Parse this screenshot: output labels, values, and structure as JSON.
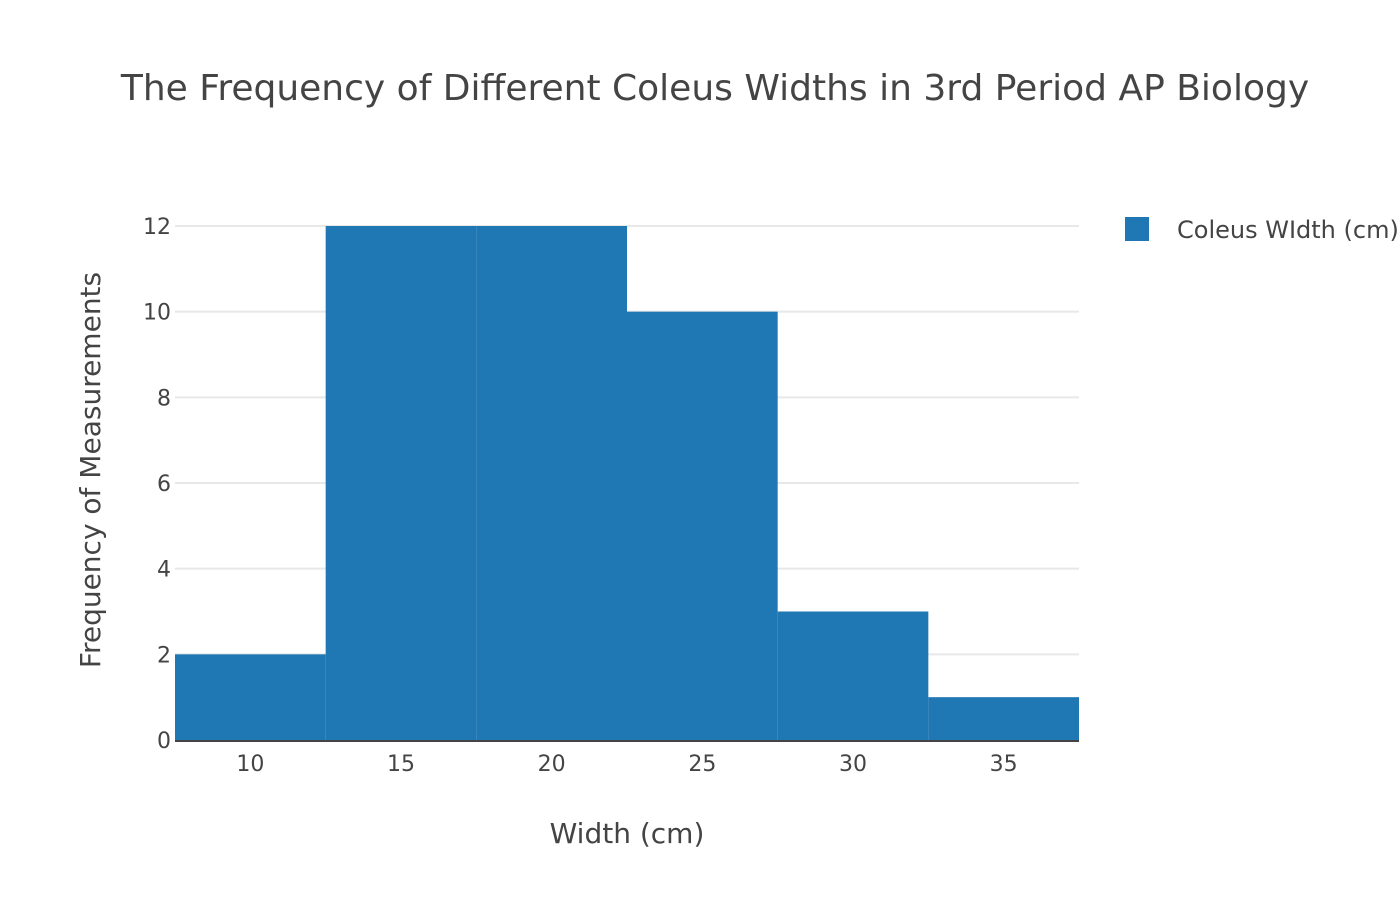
{
  "chart_data": {
    "type": "bar",
    "title": "The Frequency of Different Coleus Widths in 3rd Period AP Biology",
    "xlabel": "Width (cm)",
    "ylabel": "Frequency of Measurements",
    "bin_size": 5,
    "categories": [
      "7.5-12.5",
      "12.5-17.5",
      "17.5-22.5",
      "22.5-27.5",
      "27.5-32.5",
      "32.5-37.5"
    ],
    "bin_starts": [
      7.5,
      12.5,
      17.5,
      22.5,
      27.5,
      32.5
    ],
    "values": [
      2,
      12,
      12,
      10,
      3,
      1
    ],
    "xlim": [
      7.5,
      37.5
    ],
    "ylim": [
      0,
      12
    ],
    "x_ticks": [
      10,
      15,
      20,
      25,
      30,
      35
    ],
    "y_ticks": [
      0,
      2,
      4,
      6,
      8,
      10,
      12
    ],
    "grid": true,
    "legend": {
      "placement": "top-right",
      "entries": [
        "Coleus WIdth (cm)"
      ]
    },
    "series": [
      {
        "name": "Coleus WIdth (cm)",
        "color": "#1f77b4",
        "values": [
          2,
          12,
          12,
          10,
          3,
          1
        ]
      }
    ],
    "colors": {
      "bar": "#1f77b4",
      "grid": "#e8e8e8",
      "axis": "#444444",
      "text": "#444444"
    }
  }
}
